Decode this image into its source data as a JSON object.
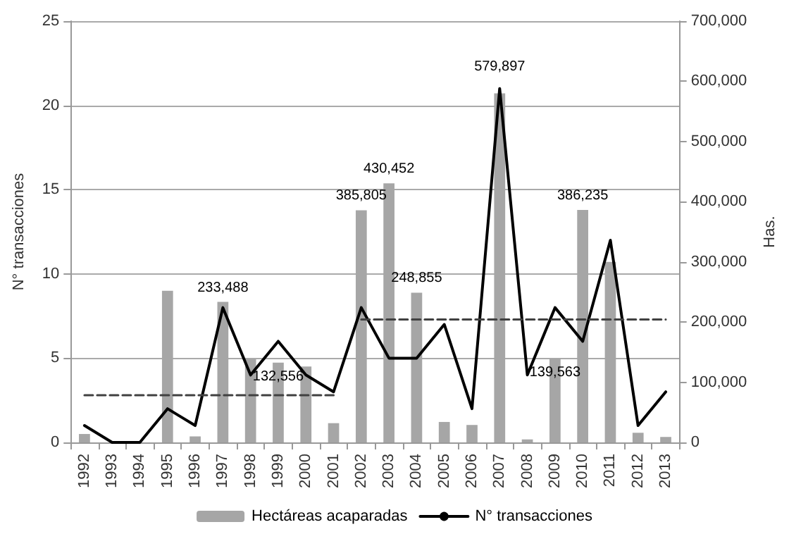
{
  "chart_data": {
    "type": "bar",
    "categories": [
      "1992",
      "1993",
      "1994",
      "1995",
      "1996",
      "1997",
      "1998",
      "1999",
      "2000",
      "2001",
      "2002",
      "2003",
      "2004",
      "2005",
      "2006",
      "2007",
      "2008",
      "2009",
      "2010",
      "2011",
      "2012",
      "2013"
    ],
    "ylabel": "N° transacciones",
    "y2label": "Has.",
    "ylim": [
      0,
      25
    ],
    "yticks": [
      0,
      5,
      10,
      15,
      20,
      25
    ],
    "y2lim": [
      0,
      700000
    ],
    "y2ticks": [
      {
        "value": 0,
        "label": "0"
      },
      {
        "value": 100000,
        "label": "100,000"
      },
      {
        "value": 200000,
        "label": "200,000"
      },
      {
        "value": 300000,
        "label": "300,000"
      },
      {
        "value": 400000,
        "label": "400,000"
      },
      {
        "value": 500000,
        "label": "500,000"
      },
      {
        "value": 600000,
        "label": "600,000"
      },
      {
        "value": 700000,
        "label": "700,000"
      }
    ],
    "grid": "y",
    "legend": "bottom",
    "marker": "none",
    "series": [
      {
        "name": "Hectáreas acaparadas",
        "axis": "y2",
        "color": "#a6a6a6",
        "values": [
          14000,
          0,
          0,
          252000,
          10000,
          233488,
          138000,
          132556,
          126000,
          32000,
          385805,
          430452,
          248855,
          34000,
          29000,
          579897,
          5000,
          139563,
          386235,
          300000,
          16000,
          9000
        ],
        "value_labels": [
          null,
          null,
          null,
          null,
          null,
          "233,488",
          null,
          "132,556",
          null,
          null,
          "385,805",
          "430,452",
          "248,855",
          null,
          null,
          "579,897",
          null,
          "139,563",
          "386,235",
          null,
          null,
          null
        ]
      },
      {
        "name": "N° transacciones",
        "type": "line",
        "axis": "y",
        "color": "#000000",
        "line_style": "solid",
        "values": [
          1,
          0,
          0,
          2,
          1,
          8,
          4,
          6,
          4,
          3,
          8,
          5,
          5,
          7,
          2,
          21,
          4,
          8,
          6,
          12,
          1,
          3
        ]
      },
      {
        "type": "line",
        "axis": "y",
        "color": "#404040",
        "line_style": "dashed",
        "values": [
          2.8,
          2.8,
          2.8,
          2.8,
          2.8,
          2.8,
          2.8,
          2.8,
          2.8,
          2.8,
          null,
          null,
          null,
          null,
          null,
          null,
          null,
          null,
          null,
          null,
          null,
          null
        ]
      },
      {
        "type": "line",
        "axis": "y",
        "color": "#404040",
        "line_style": "dashed",
        "values": [
          null,
          null,
          null,
          null,
          null,
          null,
          null,
          null,
          null,
          null,
          7.3,
          7.3,
          7.3,
          7.3,
          7.3,
          7.3,
          7.3,
          7.3,
          7.3,
          7.3,
          7.3,
          7.3
        ]
      }
    ]
  }
}
